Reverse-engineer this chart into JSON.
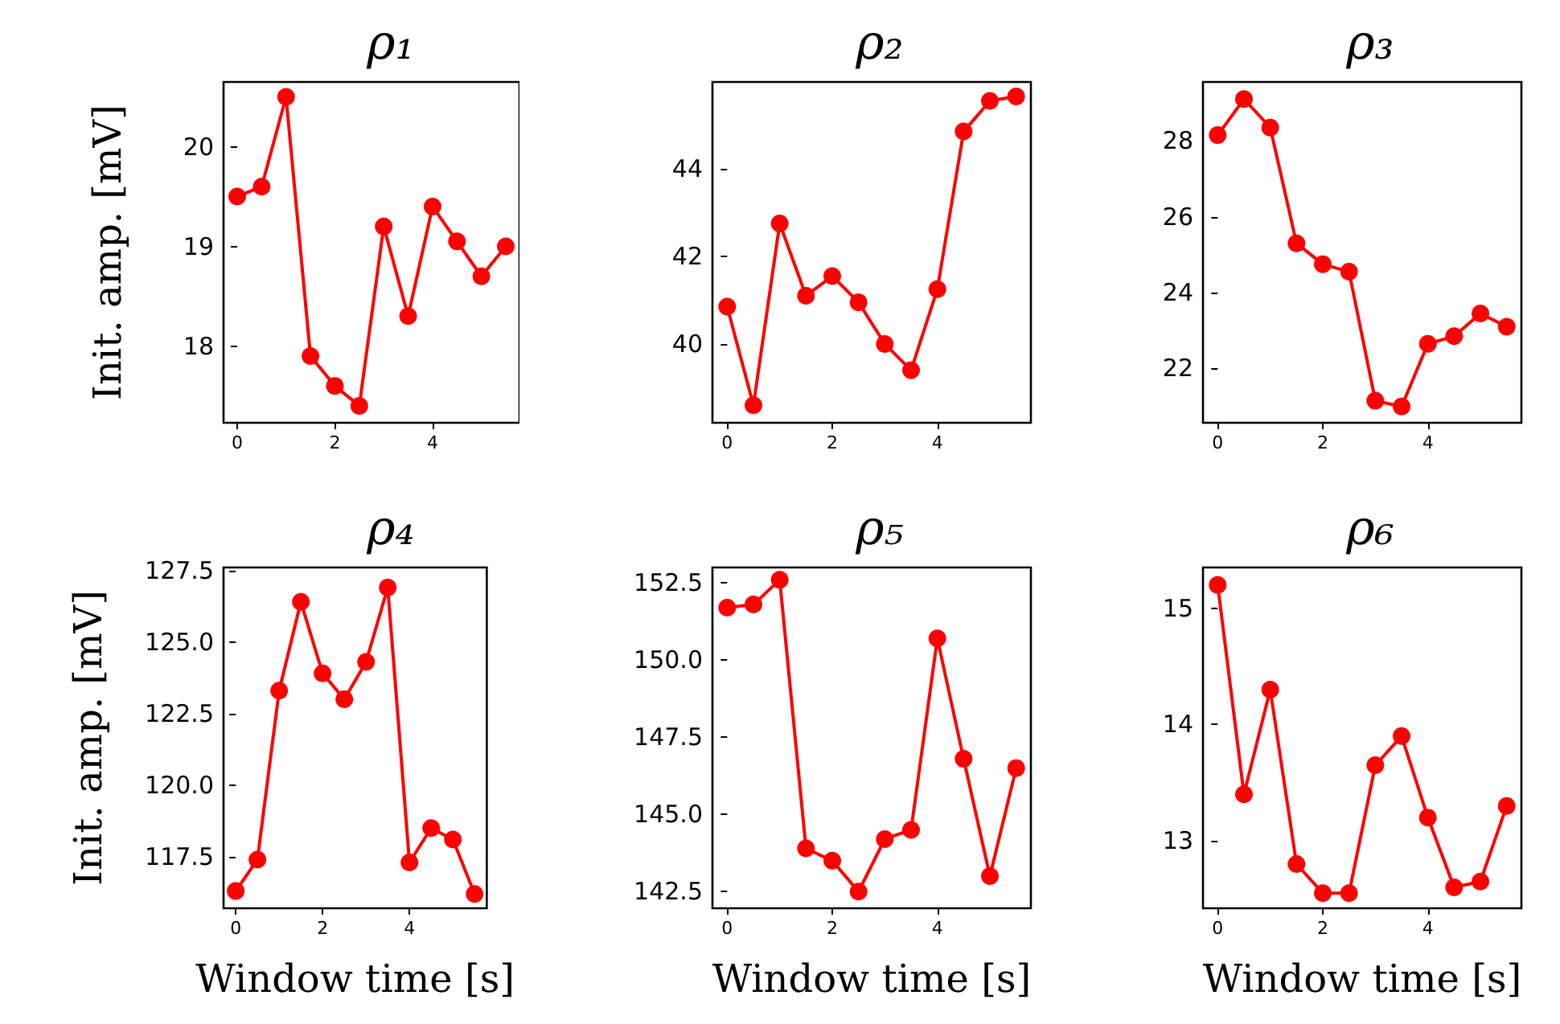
{
  "chart_data": [
    {
      "type": "line",
      "title": "ρ₁",
      "ylabel": "Init. amp. [mV]",
      "x": [
        0,
        0.5,
        1,
        1.5,
        2,
        2.5,
        3,
        3.5,
        4,
        4.5,
        5,
        5.5
      ],
      "xlim": [
        -0.28,
        5.78
      ],
      "xticks": [
        0,
        2,
        4
      ],
      "ylim": [
        17.23,
        20.65
      ],
      "yticks": [
        18,
        19,
        20
      ],
      "marker": "circle",
      "grid": false,
      "series": [
        {
          "color": "#ff0000",
          "values": [
            19.5,
            19.6,
            20.5,
            17.9,
            17.6,
            17.4,
            19.2,
            18.3,
            19.4,
            19.05,
            18.7,
            19.0
          ]
        }
      ]
    },
    {
      "type": "line",
      "title": "ρ₂",
      "x": [
        0,
        0.5,
        1,
        1.5,
        2,
        2.5,
        3,
        3.5,
        4,
        4.5,
        5,
        5.5
      ],
      "xlim": [
        -0.28,
        5.78
      ],
      "xticks": [
        0,
        2,
        4
      ],
      "ylim": [
        38.2,
        45.98
      ],
      "yticks": [
        40,
        42,
        44
      ],
      "marker": "circle",
      "grid": false,
      "series": [
        {
          "color": "#ff0000",
          "values": [
            40.85,
            38.6,
            42.75,
            41.1,
            41.55,
            40.95,
            40.0,
            39.4,
            41.25,
            44.85,
            45.55,
            45.65
          ]
        }
      ]
    },
    {
      "type": "line",
      "title": "ρ₃",
      "x": [
        0,
        0.5,
        1,
        1.5,
        2,
        2.5,
        3,
        3.5,
        4,
        4.5,
        5,
        5.5
      ],
      "xlim": [
        -0.28,
        5.78
      ],
      "xticks": [
        0,
        2,
        4
      ],
      "ylim": [
        20.57,
        29.55
      ],
      "yticks": [
        22,
        24,
        26,
        28
      ],
      "marker": "circle",
      "grid": false,
      "series": [
        {
          "color": "#ff0000",
          "values": [
            28.15,
            29.1,
            28.35,
            25.3,
            24.75,
            24.55,
            21.15,
            21.0,
            22.65,
            22.85,
            23.45,
            23.1
          ]
        }
      ]
    },
    {
      "type": "line",
      "title": "ρ₄",
      "ylabel": "Init. amp. [mV]",
      "xlabel": "Window time [s]",
      "x": [
        0,
        0.5,
        1,
        1.5,
        2,
        2.5,
        3,
        3.5,
        4,
        4.5,
        5,
        5.5
      ],
      "xlim": [
        -0.28,
        5.78
      ],
      "xticks": [
        0,
        2,
        4
      ],
      "ylim": [
        115.7,
        127.6
      ],
      "yticks": [
        117.5,
        {
          "value": 120,
          "label": "120.0"
        },
        122.5,
        {
          "value": 125,
          "label": "125.0"
        },
        127.5
      ],
      "marker": "circle",
      "grid": false,
      "series": [
        {
          "color": "#ff0000",
          "values": [
            116.3,
            117.4,
            123.3,
            126.4,
            123.9,
            123.0,
            124.3,
            126.9,
            117.3,
            118.5,
            118.1,
            116.2
          ]
        }
      ]
    },
    {
      "type": "line",
      "title": "ρ₅",
      "xlabel": "Window time [s]",
      "x": [
        0,
        0.5,
        1,
        1.5,
        2,
        2.5,
        3,
        3.5,
        4,
        4.5,
        5,
        5.5
      ],
      "xlim": [
        -0.28,
        5.78
      ],
      "xticks": [
        0,
        2,
        4
      ],
      "ylim": [
        141.96,
        153.0
      ],
      "yticks": [
        142.5,
        {
          "value": 145,
          "label": "145.0"
        },
        147.5,
        {
          "value": 150,
          "label": "150.0"
        },
        152.5
      ],
      "marker": "circle",
      "grid": false,
      "series": [
        {
          "color": "#ff0000",
          "values": [
            151.7,
            151.8,
            152.6,
            143.9,
            143.5,
            142.5,
            144.2,
            144.5,
            150.7,
            146.8,
            143.0,
            146.5
          ]
        }
      ]
    },
    {
      "type": "line",
      "title": "ρ₆",
      "xlabel": "Window time [s]",
      "x": [
        0,
        0.5,
        1,
        1.5,
        2,
        2.5,
        3,
        3.5,
        4,
        4.5,
        5,
        5.5
      ],
      "xlim": [
        -0.28,
        5.78
      ],
      "xticks": [
        0,
        2,
        4
      ],
      "ylim": [
        12.42,
        15.35
      ],
      "yticks": [
        13,
        14,
        15
      ],
      "marker": "circle",
      "grid": false,
      "series": [
        {
          "color": "#ff0000",
          "values": [
            15.2,
            13.4,
            14.3,
            12.8,
            12.55,
            12.55,
            13.65,
            13.9,
            13.2,
            12.6,
            12.65,
            13.3
          ]
        }
      ]
    }
  ]
}
